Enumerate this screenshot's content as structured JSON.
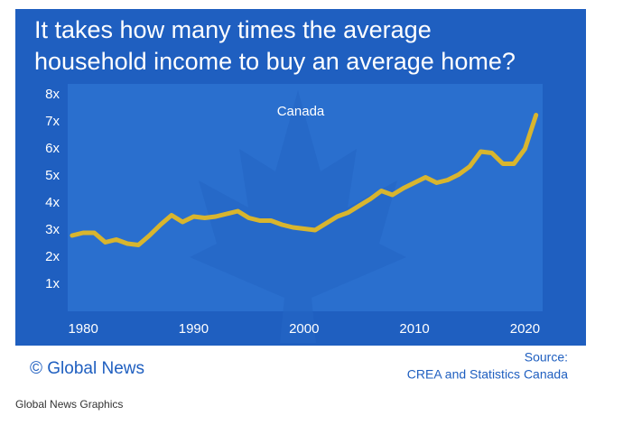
{
  "chart_data": {
    "type": "line",
    "title": "It takes how many times the average household income to buy an average home?",
    "annotation": "Canada",
    "x": [
      1979,
      1980,
      1981,
      1982,
      1983,
      1984,
      1985,
      1986,
      1987,
      1988,
      1989,
      1990,
      1991,
      1992,
      1993,
      1994,
      1995,
      1996,
      1997,
      1998,
      1999,
      2000,
      2001,
      2002,
      2003,
      2004,
      2005,
      2006,
      2007,
      2008,
      2009,
      2010,
      2011,
      2012,
      2013,
      2014,
      2015,
      2016,
      2017,
      2018,
      2019,
      2020,
      2021
    ],
    "series": [
      {
        "name": "Canada",
        "color": "#d8b52e",
        "values": [
          2.8,
          2.9,
          2.9,
          2.55,
          2.65,
          2.5,
          2.45,
          2.8,
          3.2,
          3.55,
          3.3,
          3.5,
          3.45,
          3.5,
          3.6,
          3.7,
          3.45,
          3.35,
          3.35,
          3.2,
          3.1,
          3.05,
          3.0,
          3.25,
          3.5,
          3.65,
          3.9,
          4.15,
          4.45,
          4.3,
          4.55,
          4.75,
          4.95,
          4.75,
          4.85,
          5.05,
          5.35,
          5.9,
          5.85,
          5.45,
          5.45,
          6.0,
          7.25
        ]
      }
    ],
    "xlim": [
      1978.6,
      2021.6
    ],
    "xticks": [
      1980,
      1990,
      2000,
      2010,
      2020
    ],
    "ylim": [
      0,
      8.4
    ],
    "yticks": [
      {
        "value": 1,
        "label": "1x"
      },
      {
        "value": 2,
        "label": "2x"
      },
      {
        "value": 3,
        "label": "3x"
      },
      {
        "value": 4,
        "label": "4x"
      },
      {
        "value": 5,
        "label": "5x"
      },
      {
        "value": 6,
        "label": "6x"
      },
      {
        "value": 7,
        "label": "7x"
      },
      {
        "value": 8,
        "label": "8x"
      }
    ],
    "grid": false,
    "brand": "© Global News",
    "source_label": "Source:",
    "source": "CREA and Statistics Canada",
    "footer": "Global News Graphics"
  }
}
